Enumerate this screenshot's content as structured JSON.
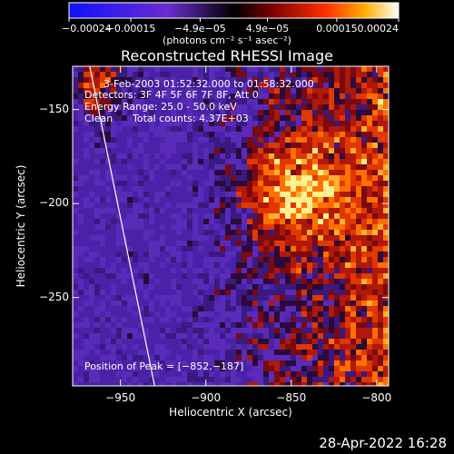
{
  "chart_data": {
    "type": "heatmap",
    "title": "Reconstructed RHESSI Image",
    "xlabel": "Heliocentric X (arcsec)",
    "ylabel": "Heliocentric Y (arcsec)",
    "xlim": [
      -978,
      -793
    ],
    "ylim": [
      -297,
      -127
    ],
    "x_ticks": [
      -950,
      -900,
      -850,
      -800
    ],
    "x_tick_labels": [
      "−950",
      "−900",
      "−850",
      "−800"
    ],
    "y_ticks": [
      -150,
      -200,
      -250
    ],
    "y_tick_labels": [
      "−150",
      "−200",
      "−250"
    ],
    "colorbar": {
      "range": [
        -0.00024,
        0.00024
      ],
      "ticks": [
        -0.00024,
        -0.00015,
        -4.9e-05,
        4.9e-05,
        0.00015,
        0.00024
      ],
      "tick_labels": [
        "−0.00024",
        "−0.00015",
        "−4.9e−05",
        "4.9e−05",
        "0.00015",
        "0.00024"
      ],
      "unit_label": "(photons cm⁻² s⁻¹ asec⁻²)"
    },
    "annotations": {
      "time": "3-Feb-2003 01:52:32.000 to 01:58:32.000",
      "detectors": "Detectors: 3F 4F 5F 6F 7F 8F, Att 0",
      "energy": "Energy Range: 25.0 - 50.0 keV",
      "clean": "Clean",
      "total_counts": "Total counts: 4.37E+03",
      "peak": "Position of Peak = [−852,−187]"
    },
    "peak_position": [
      -852,
      -187
    ],
    "limb_line": [
      [
        -968,
        -127
      ],
      [
        -930,
        -297
      ]
    ]
  },
  "footer_date": "28-Apr-2022 16:28"
}
